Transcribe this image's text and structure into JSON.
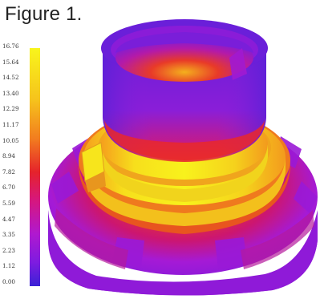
{
  "caption": "Figure 1.",
  "colorbar": {
    "ticks": [
      "16.76",
      "15.64",
      "14.52",
      "13.40",
      "12.29",
      "11.17",
      "10.05",
      "8.94",
      "7.82",
      "6.70",
      "5.59",
      "4.47",
      "3.35",
      "2.23",
      "1.12",
      "0.00"
    ],
    "min": 0.0,
    "max": 16.76,
    "colors": {
      "low": "#3d1fd6",
      "low_mid": "#8e1bd8",
      "mid": "#e0203e",
      "high_mid": "#f28a1e",
      "high": "#f7f21a"
    }
  }
}
